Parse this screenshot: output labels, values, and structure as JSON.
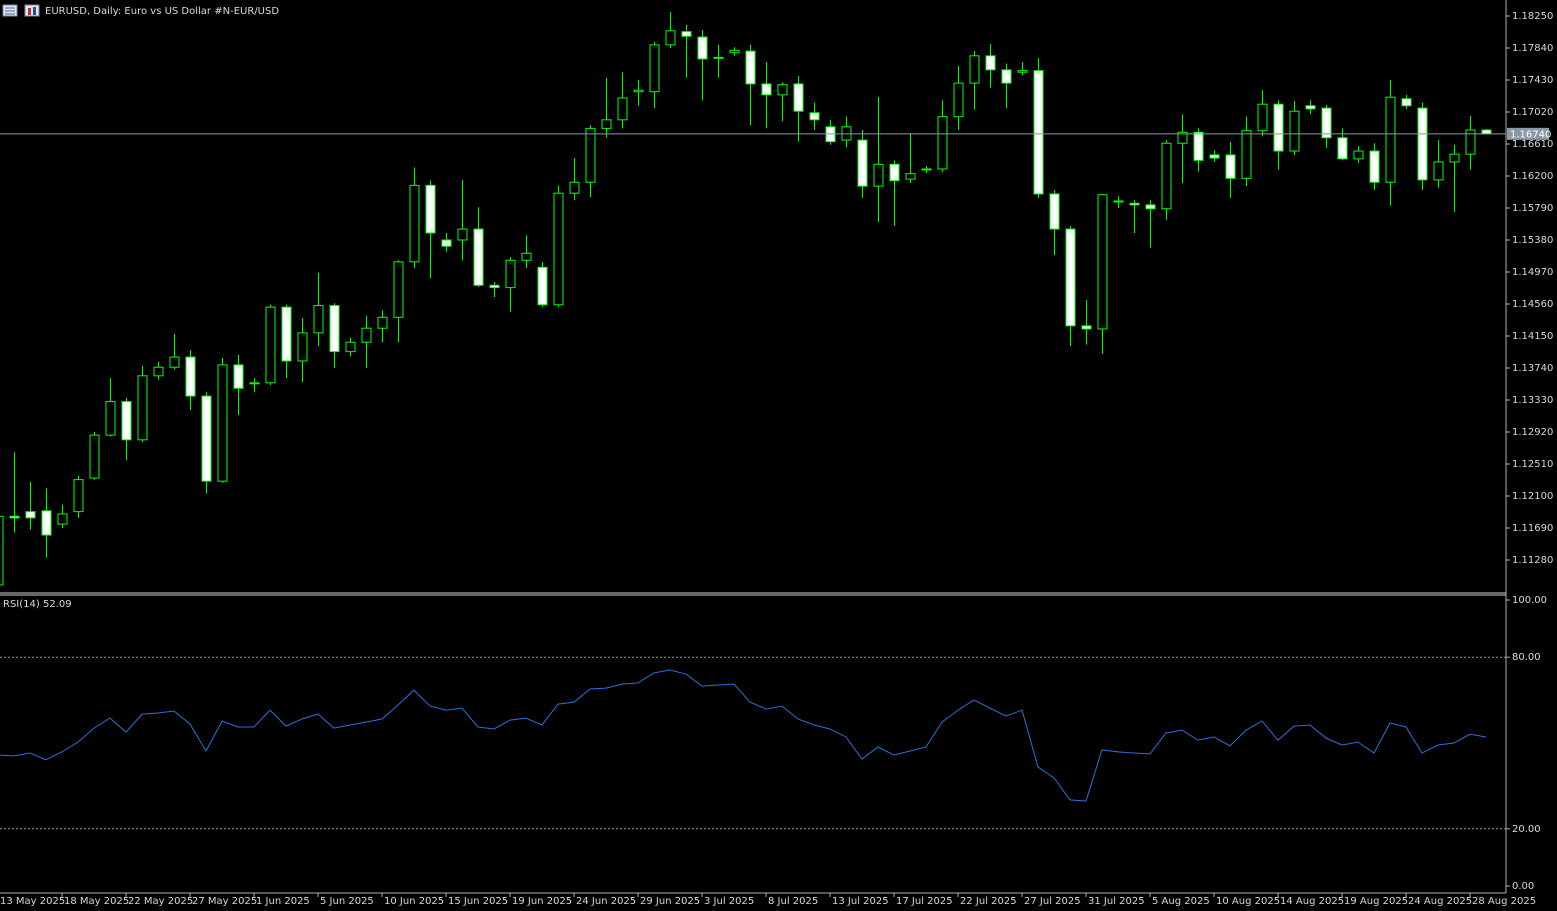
{
  "chart_data": [
    {
      "type": "candlestick",
      "title": "EURUSD, Daily:  Euro vs US Dollar #N-EUR/USD",
      "categories": [
        "13 May 2025",
        null,
        null,
        null,
        "18 May 2025",
        null,
        null,
        null,
        "22 May 2025",
        null,
        null,
        null,
        "27 May 2025",
        null,
        null,
        null,
        "1 Jun 2025",
        null,
        null,
        null,
        "5 Jun 2025",
        null,
        null,
        null,
        "10 Jun 2025",
        null,
        null,
        null,
        "15 Jun 2025",
        null,
        null,
        null,
        "19 Jun 2025",
        null,
        null,
        null,
        "24 Jun 2025",
        null,
        null,
        null,
        "29 Jun 2025",
        null,
        null,
        null,
        "3 Jul 2025",
        null,
        null,
        null,
        "8 Jul 2025",
        null,
        null,
        null,
        "13 Jul 2025",
        null,
        null,
        null,
        "17 Jul 2025",
        null,
        null,
        null,
        "22 Jul 2025",
        null,
        null,
        null,
        "27 Jul 2025",
        null,
        null,
        null,
        "31 Jul 2025",
        null,
        null,
        null,
        "5 Aug 2025",
        null,
        null,
        null,
        "10 Aug 2025",
        null,
        null,
        null,
        "14 Aug 2025",
        null,
        null,
        null,
        "19 Aug 2025",
        null,
        null,
        null,
        "24 Aug 2025",
        null,
        null,
        null,
        "28 Aug 2025",
        null
      ],
      "open": [
        1.1096,
        1.1184,
        1.119,
        1.1191,
        1.1174,
        1.119,
        1.1233,
        1.1288,
        1.1331,
        1.1282,
        1.1364,
        1.1375,
        1.1388,
        1.1338,
        1.1229,
        1.1378,
        1.1354,
        1.1355,
        1.1452,
        1.1383,
        1.1419,
        1.1454,
        1.1395,
        1.1407,
        1.1425,
        1.1439,
        1.151,
        1.1608,
        1.1538,
        1.1538,
        1.1552,
        1.148,
        1.1477,
        1.1512,
        1.1503,
        1.1455,
        1.1598,
        1.1612,
        1.1681,
        1.1692,
        1.1728,
        1.1728,
        1.1788,
        1.1805,
        1.1798,
        1.1772,
        1.1778,
        1.178,
        1.1738,
        1.1724,
        1.1738,
        1.1701,
        1.1683,
        1.1666,
        1.1666,
        1.1607,
        1.1635,
        1.1616,
        1.1628,
        1.1629,
        1.1696,
        1.1739,
        1.1774,
        1.1756,
        1.1753,
        1.1755,
        1.1597,
        1.1552,
        1.1428,
        1.1424,
        1.1587,
        1.1585,
        1.1583,
        1.1578,
        1.1662,
        1.1676,
        1.1647,
        1.1647,
        1.1617,
        1.1678,
        1.1712,
        1.1652,
        1.171,
        1.1707,
        1.1669,
        1.1642,
        1.1652,
        1.1612,
        1.1719,
        1.1707,
        1.1615,
        1.1638,
        1.1648,
        1.1679
      ],
      "high": [
        1.119,
        1.1266,
        1.1228,
        1.122,
        1.1199,
        1.1236,
        1.1292,
        1.1361,
        1.1336,
        1.1377,
        1.1382,
        1.1418,
        1.1397,
        1.1343,
        1.1387,
        1.1391,
        1.1361,
        1.1455,
        1.1455,
        1.1438,
        1.1496,
        1.1457,
        1.1413,
        1.1441,
        1.1448,
        1.1512,
        1.1631,
        1.1614,
        1.1547,
        1.1615,
        1.158,
        1.1484,
        1.1516,
        1.1544,
        1.151,
        1.1608,
        1.1643,
        1.1685,
        1.1746,
        1.1753,
        1.1743,
        1.1792,
        1.183,
        1.1814,
        1.1807,
        1.1788,
        1.1785,
        1.1788,
        1.1766,
        1.174,
        1.1748,
        1.1714,
        1.1692,
        1.1696,
        1.1679,
        1.1721,
        1.164,
        1.1675,
        1.1633,
        1.1717,
        1.1761,
        1.178,
        1.1789,
        1.1764,
        1.1766,
        1.1771,
        1.1602,
        1.1556,
        1.1461,
        1.1597,
        1.1594,
        1.1589,
        1.1589,
        1.1666,
        1.1699,
        1.1681,
        1.1653,
        1.1664,
        1.1696,
        1.173,
        1.1717,
        1.1716,
        1.1717,
        1.1711,
        1.1681,
        1.1658,
        1.1662,
        1.1743,
        1.1724,
        1.1714,
        1.1666,
        1.166,
        1.1697,
        1.168
      ],
      "low": [
        1.109,
        1.1163,
        1.1167,
        1.1131,
        1.1169,
        1.1182,
        1.1231,
        1.1286,
        1.1256,
        1.1279,
        1.1359,
        1.1372,
        1.132,
        1.1213,
        1.1227,
        1.1314,
        1.1343,
        1.1352,
        1.1361,
        1.1356,
        1.1402,
        1.1374,
        1.1389,
        1.1374,
        1.1407,
        1.1407,
        1.1502,
        1.1489,
        1.1523,
        1.1512,
        1.1478,
        1.1465,
        1.1446,
        1.1502,
        1.1452,
        1.1452,
        1.1589,
        1.1593,
        1.1669,
        1.1681,
        1.171,
        1.1707,
        1.1784,
        1.1746,
        1.1717,
        1.1746,
        1.1774,
        1.1685,
        1.1681,
        1.169,
        1.1664,
        1.1679,
        1.166,
        1.1657,
        1.1592,
        1.1561,
        1.1556,
        1.1611,
        1.1624,
        1.1625,
        1.1679,
        1.1705,
        1.1733,
        1.1707,
        1.1749,
        1.1592,
        1.1519,
        1.1402,
        1.1404,
        1.1392,
        1.1579,
        1.1547,
        1.1528,
        1.1564,
        1.1611,
        1.1626,
        1.1638,
        1.1592,
        1.1607,
        1.1671,
        1.1628,
        1.1647,
        1.1699,
        1.1656,
        1.164,
        1.1637,
        1.1602,
        1.1582,
        1.1706,
        1.1602,
        1.1605,
        1.1574,
        1.1628,
        1.1674
      ],
      "close": [
        1.1184,
        1.1182,
        1.1182,
        1.116,
        1.1187,
        1.1231,
        1.1288,
        1.1331,
        1.1282,
        1.1364,
        1.1375,
        1.1388,
        1.1338,
        1.1229,
        1.1378,
        1.1348,
        1.1355,
        1.1452,
        1.1383,
        1.1419,
        1.1454,
        1.1395,
        1.1407,
        1.1425,
        1.1439,
        1.151,
        1.1608,
        1.1547,
        1.153,
        1.1552,
        1.148,
        1.1477,
        1.1512,
        1.1521,
        1.1455,
        1.1598,
        1.1612,
        1.1681,
        1.1692,
        1.172,
        1.173,
        1.1788,
        1.1806,
        1.1799,
        1.177,
        1.1771,
        1.1781,
        1.1738,
        1.1724,
        1.1737,
        1.1703,
        1.1692,
        1.1664,
        1.1683,
        1.1607,
        1.1635,
        1.1614,
        1.1623,
        1.1629,
        1.1696,
        1.1739,
        1.1774,
        1.1756,
        1.1739,
        1.1755,
        1.1597,
        1.1552,
        1.1428,
        1.1424,
        1.1596,
        1.1588,
        1.1583,
        1.1578,
        1.1662,
        1.1676,
        1.164,
        1.1643,
        1.1617,
        1.1678,
        1.1712,
        1.1652,
        1.1703,
        1.1706,
        1.1669,
        1.1642,
        1.1652,
        1.1612,
        1.1721,
        1.171,
        1.1615,
        1.1638,
        1.1648,
        1.1679,
        1.1674
      ],
      "color": "#00ff00",
      "bull_fill": "#000000",
      "bear_fill": "#ffffff",
      "ylim": [
        1.1087,
        1.18455
      ],
      "yticks": [
        {
          "value": 1.1825,
          "label": "1.18250"
        },
        {
          "value": 1.1784,
          "label": "1.17840"
        },
        {
          "value": 1.1743,
          "label": "1.17430"
        },
        {
          "value": 1.1702,
          "label": "1.17020"
        },
        {
          "value": 1.1661,
          "label": "1.16610"
        },
        {
          "value": 1.162,
          "label": "1.16200"
        },
        {
          "value": 1.1579,
          "label": "1.15790"
        },
        {
          "value": 1.1538,
          "label": "1.15380"
        },
        {
          "value": 1.1497,
          "label": "1.14970"
        },
        {
          "value": 1.1456,
          "label": "1.14560"
        },
        {
          "value": 1.1415,
          "label": "1.14150"
        },
        {
          "value": 1.1374,
          "label": "1.13740"
        },
        {
          "value": 1.1333,
          "label": "1.13330"
        },
        {
          "value": 1.1292,
          "label": "1.12920"
        },
        {
          "value": 1.1251,
          "label": "1.12510"
        },
        {
          "value": 1.121,
          "label": "1.12100"
        },
        {
          "value": 1.1169,
          "label": "1.11690"
        },
        {
          "value": 1.1128,
          "label": "1.11280"
        }
      ],
      "current_price": {
        "value": 1.1674,
        "label": "1.16740"
      },
      "grid": false
    },
    {
      "type": "line",
      "title": "RSI(14) 52.09",
      "series": [
        {
          "color": "#2f6fe0",
          "values": [
            45.8,
            45.5,
            46.5,
            44.1,
            46.9,
            50.3,
            55.2,
            58.7,
            53.8,
            60.1,
            60.5,
            61.2,
            56.6,
            47.2,
            57.7,
            55.6,
            55.6,
            61.5,
            55.9,
            58.4,
            60.1,
            55.2,
            56.3,
            57.3,
            58.4,
            63.3,
            68.5,
            62.9,
            61.5,
            62.2,
            55.6,
            54.9,
            58.0,
            58.7,
            56.3,
            63.6,
            64.3,
            68.9,
            69.2,
            70.6,
            71.0,
            74.5,
            75.5,
            74.1,
            69.9,
            70.3,
            70.6,
            64.3,
            61.9,
            62.9,
            58.4,
            56.3,
            54.9,
            52.1,
            44.4,
            48.6,
            45.8,
            47.2,
            48.6,
            57.3,
            61.5,
            65.0,
            62.2,
            59.4,
            61.5,
            41.6,
            37.8,
            30.1,
            29.7,
            47.6,
            46.9,
            46.5,
            46.2,
            53.5,
            54.5,
            51.0,
            52.1,
            49.0,
            54.5,
            57.7,
            51.0,
            55.9,
            56.3,
            51.7,
            49.3,
            50.3,
            46.5,
            57.0,
            55.6,
            46.5,
            49.3,
            50.0,
            53.1,
            52.09
          ]
        }
      ],
      "ylim": [
        0,
        100
      ],
      "yticks": [
        {
          "value": 100,
          "label": "100.00"
        },
        {
          "value": 80,
          "label": "80.00"
        },
        {
          "value": 20,
          "label": "20.00"
        },
        {
          "value": 0,
          "label": "0.00"
        }
      ],
      "grid": false
    }
  ]
}
